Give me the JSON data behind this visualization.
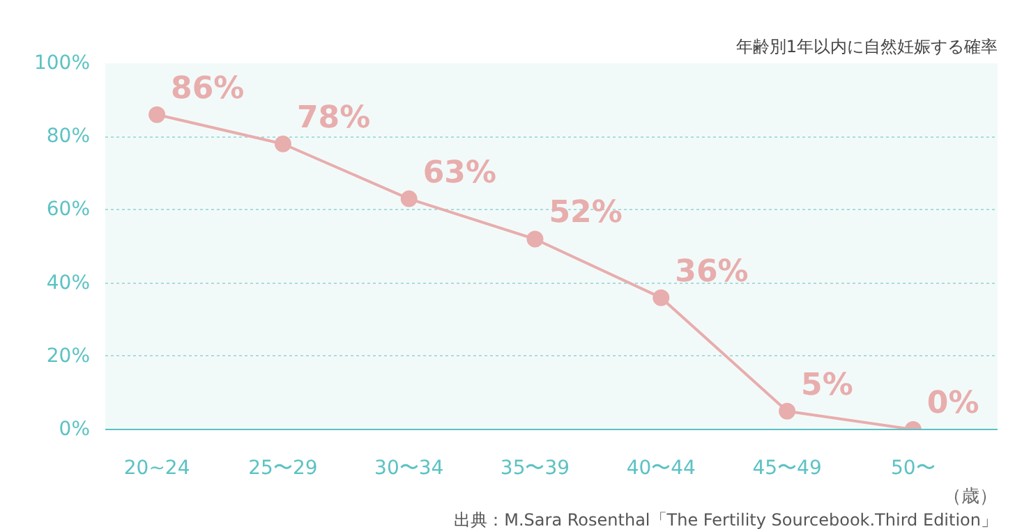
{
  "chart_data": {
    "type": "line",
    "title": "年齢別1年以内に自然妊娠する確率",
    "categories": [
      "20~24",
      "25〜29",
      "30〜34",
      "35〜39",
      "40〜44",
      "45〜49",
      "50〜"
    ],
    "series": [
      {
        "color": "#e8adad",
        "values": [
          86,
          78,
          63,
          52,
          36,
          5,
          0
        ],
        "value_labels": [
          "86%",
          "78%",
          "63%",
          "52%",
          "36%",
          "5%",
          "0%"
        ]
      }
    ],
    "xlabel": "（歳）",
    "ylim": [
      0,
      100
    ],
    "yticks": [
      {
        "value": 0,
        "label": "0%"
      },
      {
        "value": 20,
        "label": "20%"
      },
      {
        "value": 40,
        "label": "40%"
      },
      {
        "value": 60,
        "label": "60%"
      },
      {
        "value": 80,
        "label": "80%"
      },
      {
        "value": 100,
        "label": "100%"
      }
    ],
    "grid": "y",
    "marker": "circle",
    "line_style": "solid",
    "annotations": [
      "出典：M.Sara Rosenthal「The Fertility Sourcebook.Third Edition」"
    ]
  }
}
